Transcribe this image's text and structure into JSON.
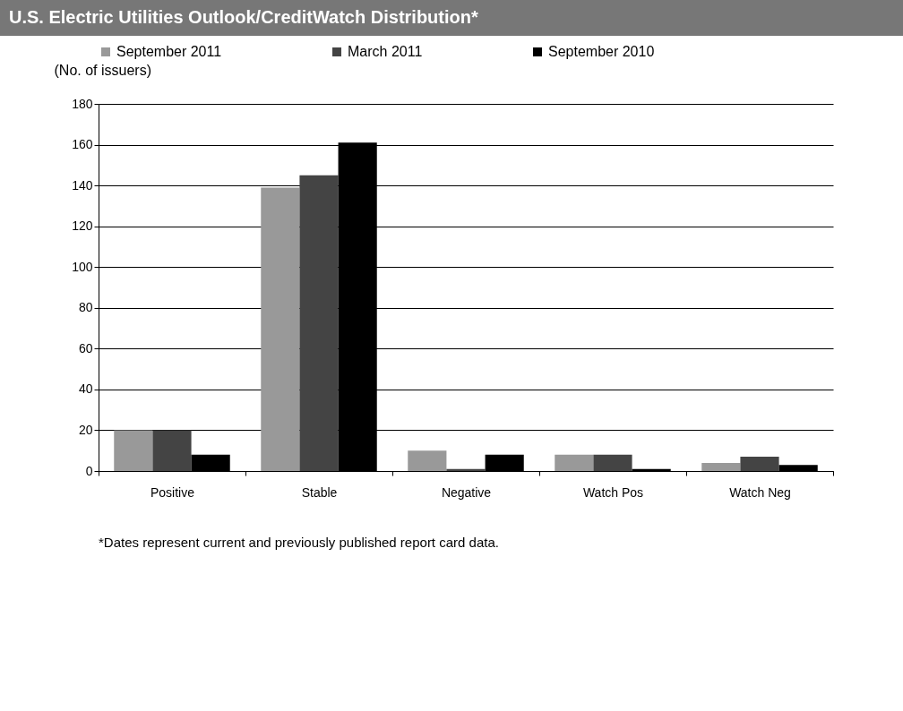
{
  "chart_data": {
    "type": "bar",
    "title": "U.S. Electric Utilities Outlook/CreditWatch Distribution*",
    "ylabel": "(No. of issuers)",
    "categories": [
      "Positive",
      "Stable",
      "Negative",
      "Watch Pos",
      "Watch Neg"
    ],
    "series": [
      {
        "name": "September 2011",
        "color": "#999999",
        "values": [
          20,
          139,
          10,
          8,
          4
        ]
      },
      {
        "name": "March 2011",
        "color": "#444444",
        "values": [
          20,
          145,
          1,
          8,
          7
        ]
      },
      {
        "name": "September 2010",
        "color": "#000000",
        "values": [
          8,
          161,
          8,
          1,
          3
        ]
      }
    ],
    "ylim": [
      0,
      180
    ],
    "yticks": [
      0,
      20,
      40,
      60,
      80,
      100,
      120,
      140,
      160,
      180
    ],
    "grid": "y",
    "legend": "top",
    "annotations": [
      "*Dates represent current and previously published report card data."
    ]
  }
}
